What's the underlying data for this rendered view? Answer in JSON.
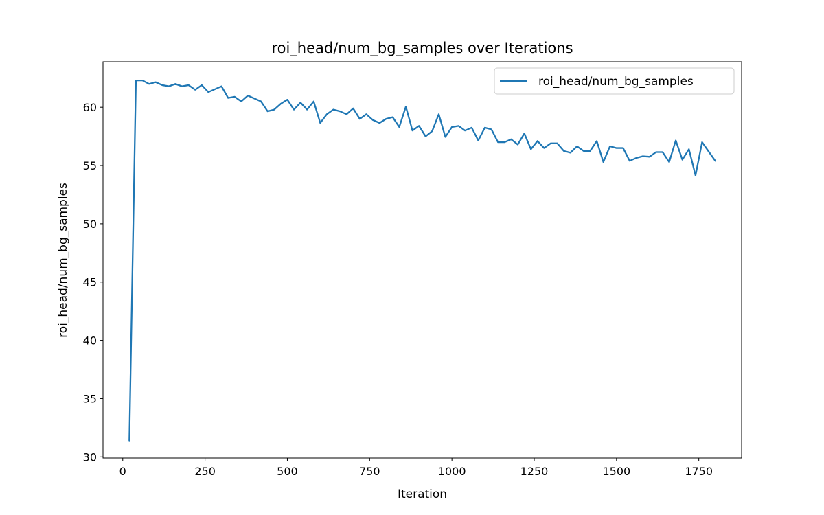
{
  "chart_data": {
    "type": "line",
    "title": "roi_head/num_bg_samples over Iterations",
    "xlabel": "Iteration",
    "ylabel": "roi_head/num_bg_samples",
    "xlim": [
      -60,
      1880
    ],
    "ylim": [
      29.9,
      63.9
    ],
    "xticks": [
      0,
      250,
      500,
      750,
      1000,
      1250,
      1500,
      1750
    ],
    "yticks": [
      30,
      35,
      40,
      45,
      50,
      55,
      60
    ],
    "grid": false,
    "legend_position": "upper-right",
    "series": [
      {
        "name": "roi_head/num_bg_samples",
        "color": "#1f77b4",
        "x": [
          20,
          40,
          60,
          80,
          100,
          120,
          140,
          160,
          180,
          200,
          220,
          240,
          260,
          280,
          300,
          320,
          340,
          360,
          380,
          400,
          420,
          440,
          460,
          480,
          500,
          520,
          540,
          560,
          580,
          600,
          620,
          640,
          660,
          680,
          700,
          720,
          740,
          760,
          780,
          800,
          820,
          840,
          860,
          880,
          900,
          920,
          940,
          960,
          980,
          1000,
          1020,
          1040,
          1060,
          1080,
          1100,
          1120,
          1140,
          1160,
          1180,
          1200,
          1220,
          1240,
          1260,
          1280,
          1300,
          1320,
          1340,
          1360,
          1380,
          1400,
          1420,
          1440,
          1460,
          1480,
          1500,
          1520,
          1540,
          1560,
          1580,
          1600,
          1620,
          1640,
          1660,
          1680,
          1700,
          1720,
          1740,
          1760,
          1780,
          1800
        ],
        "y": [
          31.4,
          62.3,
          62.3,
          62.0,
          62.15,
          61.9,
          61.8,
          62.0,
          61.8,
          61.9,
          61.5,
          61.9,
          61.3,
          61.55,
          61.8,
          60.8,
          60.9,
          60.5,
          61.0,
          60.75,
          60.5,
          59.65,
          59.8,
          60.3,
          60.65,
          59.8,
          60.4,
          59.8,
          60.5,
          58.65,
          59.4,
          59.8,
          59.65,
          59.4,
          59.9,
          59.0,
          59.4,
          58.9,
          58.65,
          59.0,
          59.15,
          58.3,
          60.05,
          58.0,
          58.4,
          57.5,
          57.95,
          59.4,
          57.45,
          58.3,
          58.4,
          58.0,
          58.25,
          57.15,
          58.25,
          58.1,
          57.0,
          57.0,
          57.25,
          56.8,
          57.75,
          56.4,
          57.1,
          56.5,
          56.9,
          56.9,
          56.25,
          56.1,
          56.65,
          56.25,
          56.25,
          57.1,
          55.3,
          56.65,
          56.5,
          56.5,
          55.4,
          55.65,
          55.8,
          55.75,
          56.15,
          56.15,
          55.3,
          57.15,
          55.5,
          56.4,
          54.15,
          57.0,
          56.2,
          55.4
        ]
      }
    ]
  }
}
